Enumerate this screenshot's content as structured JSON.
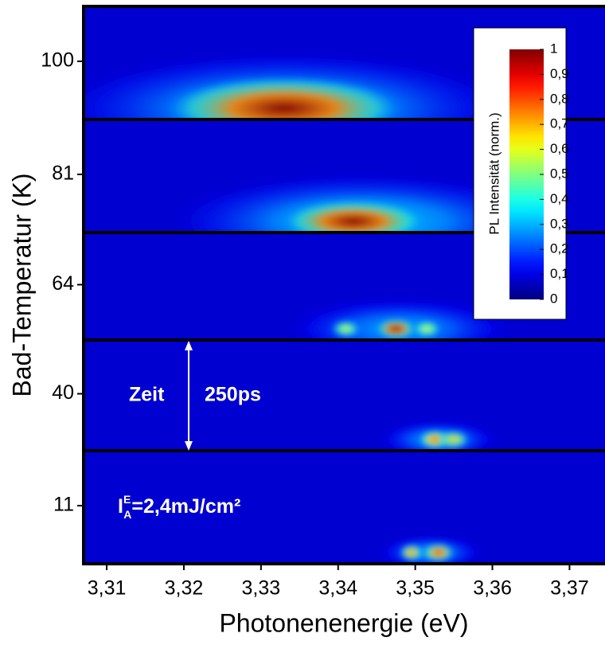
{
  "chart_data": {
    "type": "heatmap",
    "x_label": "Photonenenergie (eV)",
    "y_label": "Bad-Temperatur (K)",
    "xlim": [
      3.307,
      3.3746
    ],
    "xticks": [
      {
        "value": 3.31,
        "label": "3,31"
      },
      {
        "value": 3.32,
        "label": "3,32"
      },
      {
        "value": 3.33,
        "label": "3,33"
      },
      {
        "value": 3.34,
        "label": "3,34"
      },
      {
        "value": 3.35,
        "label": "3,35"
      },
      {
        "value": 3.36,
        "label": "3,36"
      },
      {
        "value": 3.37,
        "label": "3,37"
      }
    ],
    "categories": [
      100,
      81,
      64,
      40,
      11
    ],
    "panels": [
      {
        "peaks": [
          {
            "energy": 3.333,
            "intensity": 0.35,
            "width": 0.06
          },
          {
            "energy": 3.333,
            "intensity": 1,
            "width": 0.03
          }
        ]
      },
      {
        "peaks": [
          {
            "energy": 3.343,
            "intensity": 0.35,
            "width": 0.05
          },
          {
            "energy": 3.342,
            "intensity": 1,
            "width": 0.018
          }
        ]
      },
      {
        "peaks": [
          {
            "energy": 3.348,
            "intensity": 0.3,
            "width": 0.03
          },
          {
            "energy": 3.341,
            "intensity": 0.6,
            "width": 0.004
          },
          {
            "energy": 3.3475,
            "intensity": 1,
            "width": 0.005
          },
          {
            "energy": 3.3515,
            "intensity": 0.6,
            "width": 0.004
          }
        ]
      },
      {
        "peaks": [
          {
            "energy": 3.353,
            "intensity": 0.3,
            "width": 0.016
          },
          {
            "energy": 3.3525,
            "intensity": 0.85,
            "width": 0.004
          },
          {
            "energy": 3.355,
            "intensity": 0.7,
            "width": 0.004
          }
        ]
      },
      {
        "peaks": [
          {
            "energy": 3.352,
            "intensity": 0.3,
            "width": 0.014
          },
          {
            "energy": 3.3495,
            "intensity": 0.8,
            "width": 0.003
          },
          {
            "energy": 3.353,
            "intensity": 0.9,
            "width": 0.004
          }
        ]
      }
    ],
    "colorbar": {
      "label": "PL Intensität (norm.)",
      "lim": [
        0,
        1
      ],
      "ticks": [
        1,
        {
          "value": 0.9,
          "label": "0,9"
        },
        {
          "value": 0.8,
          "label": "0,8"
        },
        {
          "value": 0.7,
          "label": "0,7"
        },
        {
          "value": 0.6,
          "label": "0,6"
        },
        {
          "value": 0.5,
          "label": "0,5"
        },
        {
          "value": 0.4,
          "label": "0,4"
        },
        {
          "value": 0.3,
          "label": "0,3"
        },
        {
          "value": 0.2,
          "label": "0,2"
        },
        {
          "value": 0.1,
          "label": "0,1"
        },
        0
      ]
    },
    "annotations": {
      "time": "Zeit",
      "duration": "250ps",
      "fluence": {
        "symbol": "I",
        "sub": "A",
        "sup": "E",
        "text": "=2,4mJ/cm²"
      }
    }
  }
}
